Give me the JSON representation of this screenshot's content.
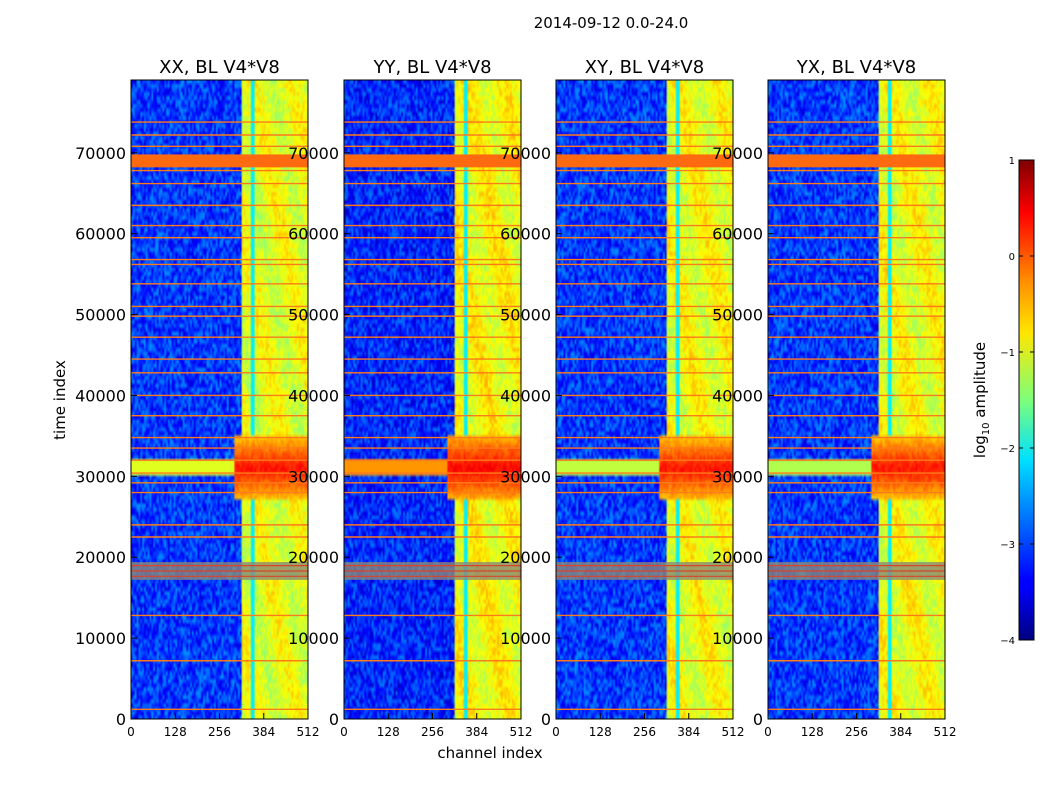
{
  "figure": {
    "suptitle": "2014-09-12 0.0-24.0"
  },
  "chart_data": {
    "type": "heatmap",
    "title": "2014-09-12 0.0-24.0",
    "xlabel": "channel index",
    "ylabel": "time index",
    "xlim": [
      0,
      512
    ],
    "ylim": [
      0,
      79000
    ],
    "xticks": [
      0,
      128,
      256,
      384,
      512
    ],
    "yticks": [
      0,
      10000,
      20000,
      30000,
      40000,
      50000,
      60000,
      70000
    ],
    "panels": [
      {
        "name": "XX, BL V4*V8",
        "band_level": -1.0,
        "event_level": 0.3,
        "left_leak": 0.55,
        "noise_level": -3.1
      },
      {
        "name": "YY, BL V4*V8",
        "band_level": -0.9,
        "event_level": 0.4,
        "left_leak": 0.9,
        "noise_level": -3.2
      },
      {
        "name": "XY, BL V4*V8",
        "band_level": -0.95,
        "event_level": 0.3,
        "left_leak": 0.45,
        "noise_level": -3.1
      },
      {
        "name": "YX, BL V4*V8",
        "band_level": -0.95,
        "event_level": 0.3,
        "left_leak": 0.4,
        "noise_level": -3.1
      }
    ],
    "features": {
      "bright_band_channels": [
        320,
        512
      ],
      "narrow_line_channel": 352,
      "event_time_range": [
        27000,
        35000
      ],
      "event_center_time": 31000,
      "flagged_times": [
        1200,
        7200,
        12800,
        22500,
        24000,
        28000,
        29200,
        30400,
        32000,
        33500,
        34800,
        37500,
        40000,
        42800,
        44500,
        47200,
        49800,
        51000,
        53800,
        56200,
        56800,
        59500,
        61000,
        63500,
        66200,
        67800,
        70800,
        72200,
        73800
      ],
      "flagged_block": [
        68200,
        69800
      ],
      "gray_block": [
        17200,
        19400
      ]
    },
    "colorbar": {
      "label": "log",
      "label_sub": "10",
      "label_tail": " amplitude",
      "range": [
        -4,
        1
      ],
      "ticks": [
        -4,
        -3,
        -2,
        -1,
        0,
        1
      ],
      "tick_labels": [
        "−4",
        "−3",
        "−2",
        "−1",
        "0",
        "1"
      ],
      "colormap": "jet"
    }
  }
}
